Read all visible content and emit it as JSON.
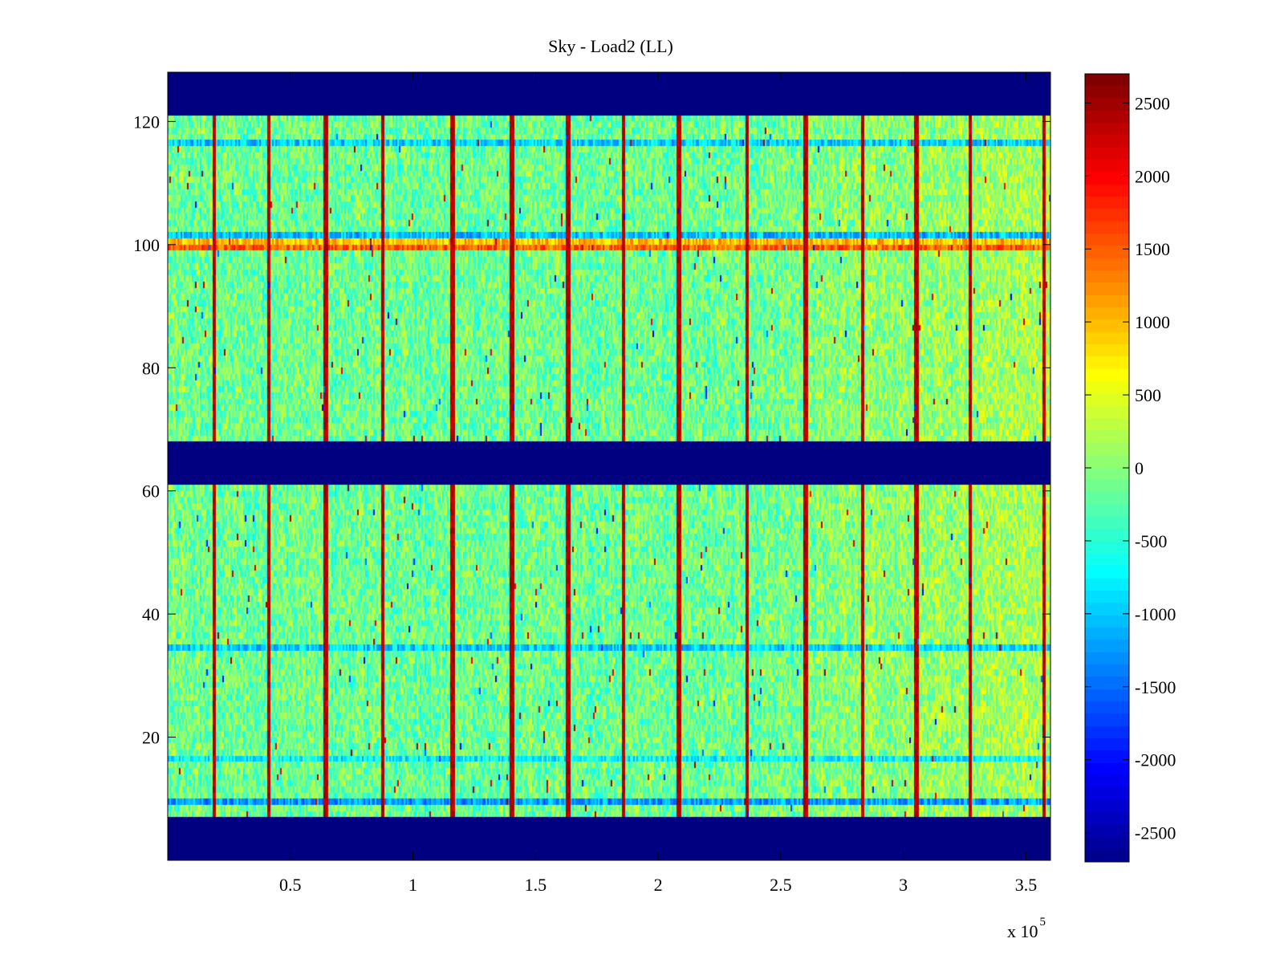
{
  "chart_data": {
    "type": "heatmap",
    "title": "Sky - Load2 (LL)",
    "xlabel": "",
    "ylabel": "",
    "x_exponent_label": "x 10",
    "x_exponent_power": "5",
    "xlim": [
      0,
      3.6
    ],
    "ylim": [
      0,
      128
    ],
    "x_ticks": [
      {
        "value": 0.5,
        "label": "0.5"
      },
      {
        "value": 1,
        "label": "1"
      },
      {
        "value": 1.5,
        "label": "1.5"
      },
      {
        "value": 2,
        "label": "2"
      },
      {
        "value": 2.5,
        "label": "2.5"
      },
      {
        "value": 3,
        "label": "3"
      },
      {
        "value": 3.5,
        "label": "3.5"
      }
    ],
    "y_ticks": [
      {
        "value": 20,
        "label": "20"
      },
      {
        "value": 40,
        "label": "40"
      },
      {
        "value": 60,
        "label": "60"
      },
      {
        "value": 80,
        "label": "80"
      },
      {
        "value": 100,
        "label": "100"
      },
      {
        "value": 120,
        "label": "120"
      }
    ],
    "colorbar": {
      "colormap": "jet",
      "min": -2700,
      "max": 2700,
      "ticks": [
        {
          "value": 2500,
          "label": "2500"
        },
        {
          "value": 2000,
          "label": "2000"
        },
        {
          "value": 1500,
          "label": "1500"
        },
        {
          "value": 1000,
          "label": "1000"
        },
        {
          "value": 500,
          "label": "500"
        },
        {
          "value": 0,
          "label": "0"
        },
        {
          "value": -500,
          "label": "-500"
        },
        {
          "value": -1000,
          "label": "-1000"
        },
        {
          "value": -1500,
          "label": "-1500"
        },
        {
          "value": -2000,
          "label": "-2000"
        },
        {
          "value": -2500,
          "label": "-2500"
        }
      ]
    },
    "masked_row_ranges": [
      [
        0,
        7
      ],
      [
        61,
        68
      ],
      [
        121,
        128
      ]
    ],
    "masked_value": -2700,
    "hot_columns_x": [
      0.185,
      0.41,
      0.64,
      0.875,
      1.16,
      1.4,
      1.63,
      1.855,
      2.08,
      2.36,
      2.6,
      2.83,
      3.05,
      3.27,
      3.57
    ],
    "anomalous_rows": [
      {
        "row": 99,
        "value": 1500
      },
      {
        "row": 100,
        "value": 1000
      },
      {
        "row": 101,
        "value": -1000
      },
      {
        "row": 116,
        "value": -900
      },
      {
        "row": 34,
        "value": -900
      },
      {
        "row": 16,
        "value": -700
      },
      {
        "row": 9,
        "value": -1200
      }
    ],
    "background_value_range": [
      -600,
      400
    ],
    "trend_note_from": 2.2,
    "colors": {
      "masked": "#00008f",
      "axis": "#000000"
    }
  }
}
